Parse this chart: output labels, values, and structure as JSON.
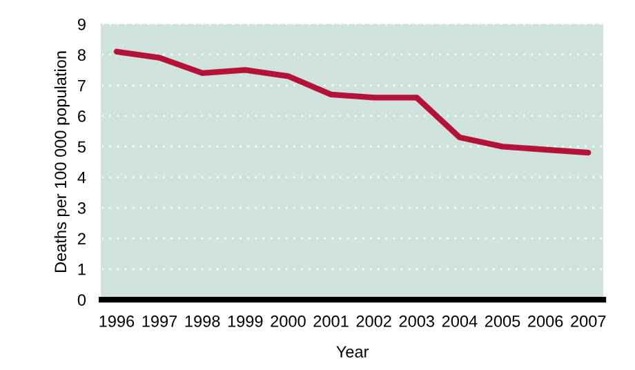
{
  "chart_data": {
    "type": "line",
    "xlabel": "Year",
    "ylabel": "Deaths per 100 000 population",
    "categories": [
      "1996",
      "1997",
      "1998",
      "1999",
      "2000",
      "2001",
      "2002",
      "2003",
      "2004",
      "2005",
      "2006",
      "2007"
    ],
    "series": [
      {
        "color": "#b5123a",
        "values": [
          8.1,
          7.9,
          7.4,
          7.5,
          7.3,
          6.7,
          6.6,
          6.6,
          5.3,
          5.0,
          4.9,
          4.8
        ]
      }
    ],
    "ylim": [
      0,
      9
    ],
    "yticks": [
      0,
      1,
      2,
      3,
      4,
      5,
      6,
      7,
      8,
      9
    ],
    "grid": "y",
    "marker": "none",
    "line_style": "solid"
  }
}
